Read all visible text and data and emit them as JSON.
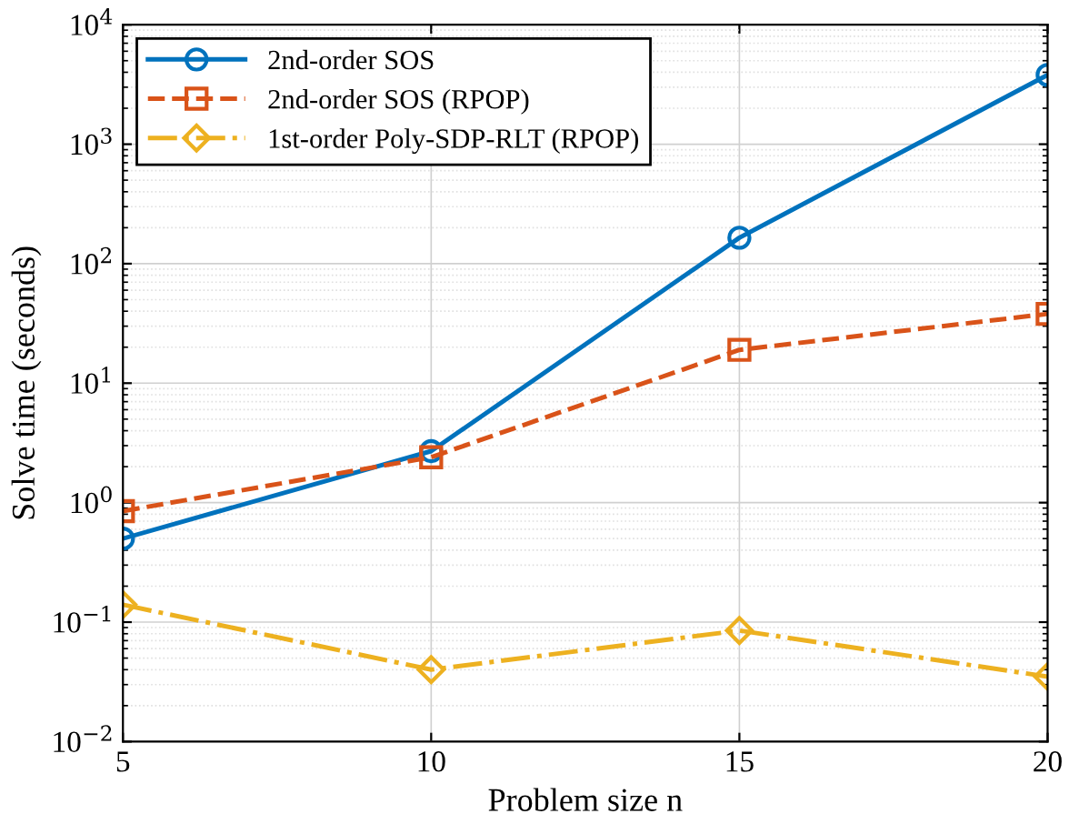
{
  "chart_data": {
    "type": "line",
    "xlabel": "Problem size n",
    "ylabel": "Solve time (seconds)",
    "x": [
      5,
      10,
      15,
      20
    ],
    "series": [
      {
        "name": "2nd-order SOS",
        "color": "#0072bd",
        "values": [
          0.5,
          2.7,
          165,
          3800
        ],
        "marker": "circle",
        "line_style": "solid"
      },
      {
        "name": "2nd-order SOS (RPOP)",
        "color": "#d95319",
        "values": [
          0.85,
          2.4,
          19,
          38
        ],
        "marker": "square",
        "line_style": "dashed"
      },
      {
        "name": "1st-order Poly-SDP-RLT (RPOP)",
        "color": "#edb120",
        "values": [
          0.14,
          0.04,
          0.085,
          0.035
        ],
        "marker": "diamond",
        "line_style": "dashdot"
      }
    ],
    "log": "y",
    "xlim": [
      5,
      20
    ],
    "xticks": [
      5,
      10,
      15,
      20
    ],
    "ylim": [
      0.01,
      10000
    ],
    "yticks": [
      {
        "value": 0.01,
        "label": "10$^{−2}$"
      },
      {
        "value": 0.1,
        "label": "10$^{−1}$"
      },
      {
        "value": 1,
        "label": "10$^{0}$"
      },
      {
        "value": 10,
        "label": "10$^{1}$"
      },
      {
        "value": 100,
        "label": "10$^{2}$"
      },
      {
        "value": 1000,
        "label": "10$^{3}$"
      },
      {
        "value": 10000,
        "label": "10$^{4}$"
      }
    ],
    "grid": true,
    "legend": "top left"
  }
}
